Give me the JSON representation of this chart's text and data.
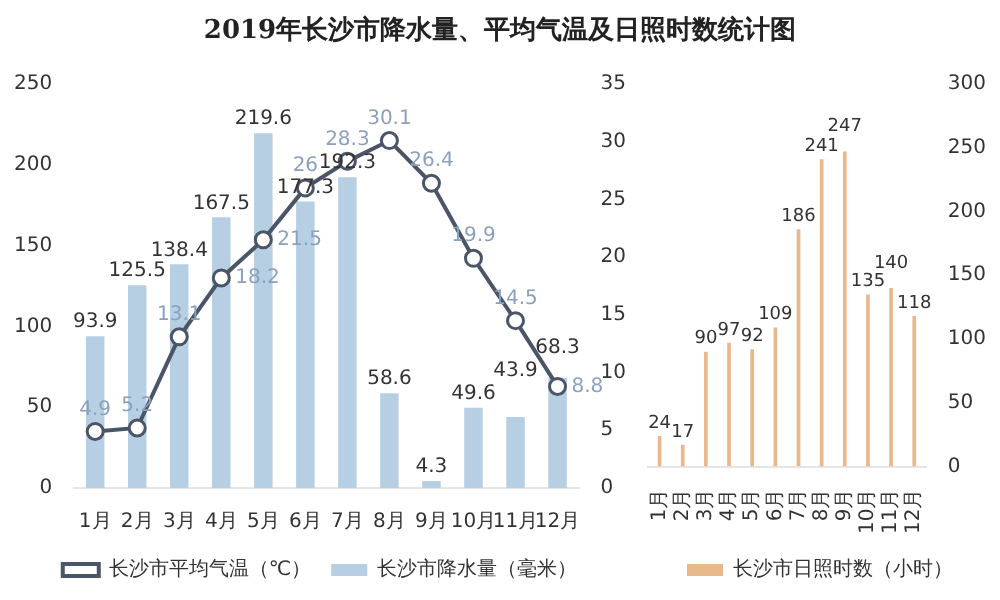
{
  "chart_data": [
    {
      "type": "bar",
      "title": "2019年长沙市降水量、平均气温及日照时数统计图",
      "categories": [
        "1月",
        "2月",
        "3月",
        "4月",
        "5月",
        "6月",
        "7月",
        "8月",
        "9月",
        "10月",
        "11月",
        "12月"
      ],
      "series": [
        {
          "name": "长沙市降水量（毫米）",
          "color": "#b7cfe2",
          "values": [
            93.9,
            125.5,
            138.4,
            167.5,
            219.6,
            177.3,
            192.3,
            58.6,
            4.3,
            49.6,
            43.9,
            68.3
          ]
        },
        {
          "name": "长沙市平均气温（℃）",
          "type": "line",
          "axis": "y2",
          "color": "#4a5568",
          "marker": "circle",
          "values": [
            4.9,
            5.2,
            13.1,
            18.2,
            21.5,
            26,
            28.3,
            30.1,
            26.4,
            19.9,
            14.5,
            8.8
          ]
        }
      ],
      "ylim": [
        0,
        250
      ],
      "yticks": [
        0,
        50,
        100,
        150,
        200,
        250
      ],
      "y2lim": [
        0,
        35
      ],
      "y2ticks": [
        0,
        5,
        10,
        15,
        20,
        25,
        30,
        35
      ],
      "data_labels": true,
      "legend": "bottom",
      "grid": false
    },
    {
      "type": "bar",
      "categories": [
        "1月",
        "2月",
        "3月",
        "4月",
        "5月",
        "6月",
        "7月",
        "8月",
        "9月",
        "10月",
        "11月",
        "12月"
      ],
      "series": [
        {
          "name": "长沙市日照时数（小时）",
          "color": "#e9b98c",
          "values": [
            24,
            17,
            90,
            97,
            92,
            109,
            186,
            241,
            247,
            135,
            140,
            118
          ]
        }
      ],
      "ylim": [
        0,
        300
      ],
      "yticks": [
        0,
        50,
        100,
        150,
        200,
        250,
        300
      ],
      "data_labels": true,
      "legend": "bottom",
      "grid": false
    }
  ]
}
